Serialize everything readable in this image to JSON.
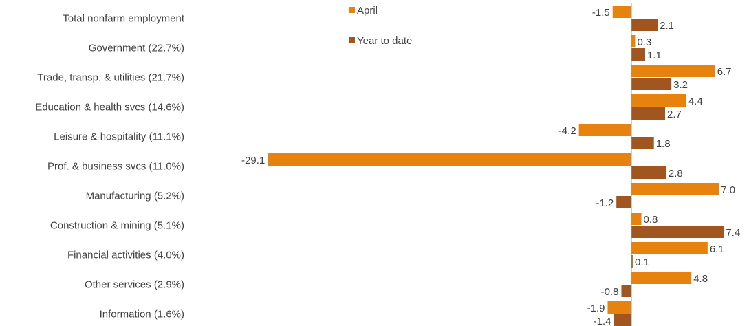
{
  "chart_data": {
    "type": "bar",
    "orientation": "horizontal",
    "categories": [
      "Total nonfarm employment",
      "Government (22.7%)",
      "Trade, transp. & utilities (21.7%)",
      "Education & health svcs (14.6%)",
      "Leisure & hospitality (11.1%)",
      "Prof. & business svcs (11.0%)",
      "Manufacturing (5.2%)",
      "Construction & mining (5.1%)",
      "Financial activities (4.0%)",
      "Other services (2.9%)",
      "Information (1.6%)"
    ],
    "series": [
      {
        "name": "April",
        "color": "#E8820E",
        "values": [
          -1.5,
          0.3,
          6.7,
          4.4,
          -4.2,
          -29.1,
          7.0,
          0.8,
          6.1,
          4.8,
          -1.9
        ],
        "labels": [
          "-1.5",
          "0.3",
          "6.7",
          "4.4",
          "-4.2",
          "-29.1",
          "7.0",
          "0.8",
          "6.1",
          "4.8",
          "-1.9"
        ]
      },
      {
        "name": "Year to date",
        "color": "#A0561E",
        "values": [
          2.1,
          1.1,
          3.2,
          2.7,
          1.8,
          2.8,
          -1.2,
          7.4,
          0.1,
          -0.8,
          -1.4
        ],
        "labels": [
          "2.1",
          "1.1",
          "3.2",
          "2.7",
          "1.8",
          "2.8",
          "-1.2",
          "7.4",
          "0.1",
          "-0.8",
          "-1.4"
        ]
      }
    ],
    "legend": {
      "position": "top-center",
      "entries": [
        "April",
        "Year to date"
      ]
    },
    "grid": false,
    "xlim": [
      -29.1,
      7.4
    ],
    "title": "",
    "xlabel": "",
    "ylabel": ""
  }
}
